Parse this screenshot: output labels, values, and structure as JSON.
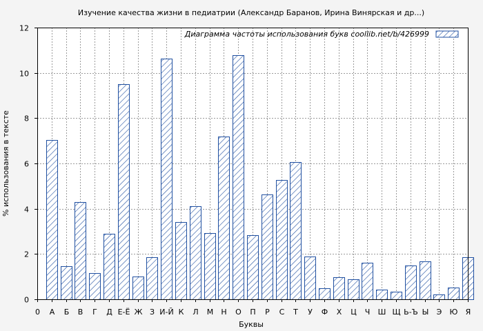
{
  "chart_data": {
    "type": "bar",
    "title": "Изучение качества жизни в педиатрии (Александр Баранов, Ирина Винярская и др...)",
    "xlabel": "Буквы",
    "ylabel": "% использования в тексте",
    "legend": "Диаграмма частоты использования букв  coollib.net/b/426999",
    "legend_position": "top-right",
    "grid": true,
    "ylim": [
      0,
      12
    ],
    "yticks": [
      "0",
      "2",
      "4",
      "6",
      "8",
      "10",
      "12"
    ],
    "pattern": "diagonal-hatch",
    "colors": {
      "bar_stroke": "#1f4fa0",
      "hatch": "#1f4fa0",
      "plot_bg": "#ffffff",
      "page_bg": "#f4f4f4",
      "grid": "#9a9a9a"
    },
    "categories": [
      "0",
      "А",
      "Б",
      "В",
      "Г",
      "Д",
      "Е-Ё",
      "Ж",
      "З",
      "И-Й",
      "К",
      "Л",
      "М",
      "Н",
      "О",
      "П",
      "Р",
      "С",
      "Т",
      "У",
      "Ф",
      "Х",
      "Ц",
      "Ч",
      "Ш",
      "Щ",
      "Ь-Ъ",
      "Ы",
      "Э",
      "Ю",
      "Я"
    ],
    "values": [
      null,
      7.05,
      1.45,
      4.3,
      1.17,
      2.9,
      9.5,
      1.02,
      1.87,
      10.62,
      3.42,
      4.12,
      2.92,
      7.18,
      10.77,
      2.82,
      4.62,
      5.28,
      6.05,
      1.9,
      0.5,
      0.98,
      0.87,
      1.62,
      0.42,
      0.32,
      1.5,
      1.68,
      0.2,
      0.53,
      1.87
    ]
  }
}
